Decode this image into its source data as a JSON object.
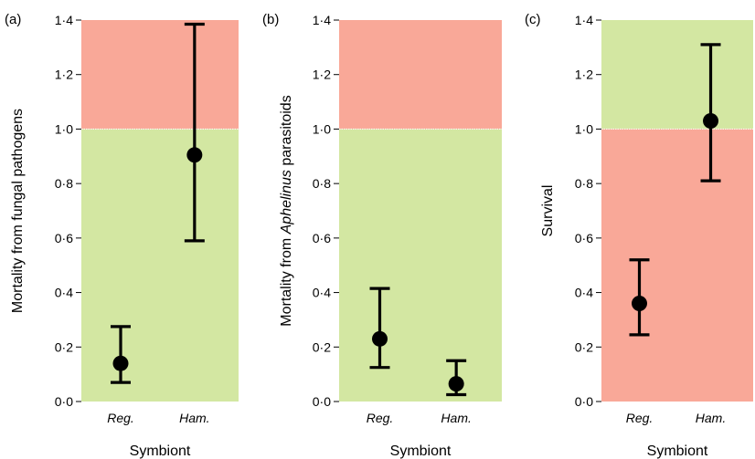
{
  "colors": {
    "good": "#d3e7a2",
    "bad": "#f9a898",
    "mark": "#000000",
    "divider": "#ffffff"
  },
  "chart_data": [
    {
      "type": "scatter",
      "panel_label": "(a)",
      "xlabel": "Symbiont",
      "ylabel": "Mortality from fungal pathogens",
      "categories": [
        "Reg.",
        "Ham."
      ],
      "ylim": [
        0,
        1.4
      ],
      "yticks": [
        0,
        0.2,
        0.4,
        0.6,
        0.8,
        1.0,
        1.2,
        1.4
      ],
      "ytick_labels": [
        "0·0",
        "0·2",
        "0·4",
        "0·6",
        "0·8",
        "1·0",
        "1·2",
        "1·4"
      ],
      "threshold": 1.0,
      "above_color": "bad",
      "below_color": "good",
      "values": [
        0.14,
        0.905
      ],
      "lower": [
        0.07,
        0.59
      ],
      "upper": [
        0.275,
        1.385
      ]
    },
    {
      "type": "scatter",
      "panel_label": "(b)",
      "xlabel": "Symbiont",
      "ylabel_parts": [
        "Mortality from ",
        "Aphelinus",
        " parasitoids"
      ],
      "categories": [
        "Reg.",
        "Ham."
      ],
      "ylim": [
        0,
        1.4
      ],
      "yticks": [
        0,
        0.2,
        0.4,
        0.6,
        0.8,
        1.0,
        1.2,
        1.4
      ],
      "ytick_labels": [
        "0·0",
        "0·2",
        "0·4",
        "0·6",
        "0·8",
        "1·0",
        "1·2",
        "1·4"
      ],
      "threshold": 1.0,
      "above_color": "bad",
      "below_color": "good",
      "values": [
        0.23,
        0.065
      ],
      "lower": [
        0.125,
        0.025
      ],
      "upper": [
        0.415,
        0.15
      ]
    },
    {
      "type": "scatter",
      "panel_label": "(c)",
      "xlabel": "Symbiont",
      "ylabel": "Survival",
      "categories": [
        "Reg.",
        "Ham."
      ],
      "ylim": [
        0,
        1.4
      ],
      "yticks": [
        0,
        0.2,
        0.4,
        0.6,
        0.8,
        1.0,
        1.2,
        1.4
      ],
      "ytick_labels": [
        "0·0",
        "0·2",
        "0·4",
        "0·6",
        "0·8",
        "1·0",
        "1·2",
        "1·4"
      ],
      "threshold": 1.0,
      "above_color": "good",
      "below_color": "bad",
      "values": [
        0.36,
        1.03
      ],
      "lower": [
        0.245,
        0.81
      ],
      "upper": [
        0.52,
        1.31
      ]
    }
  ]
}
